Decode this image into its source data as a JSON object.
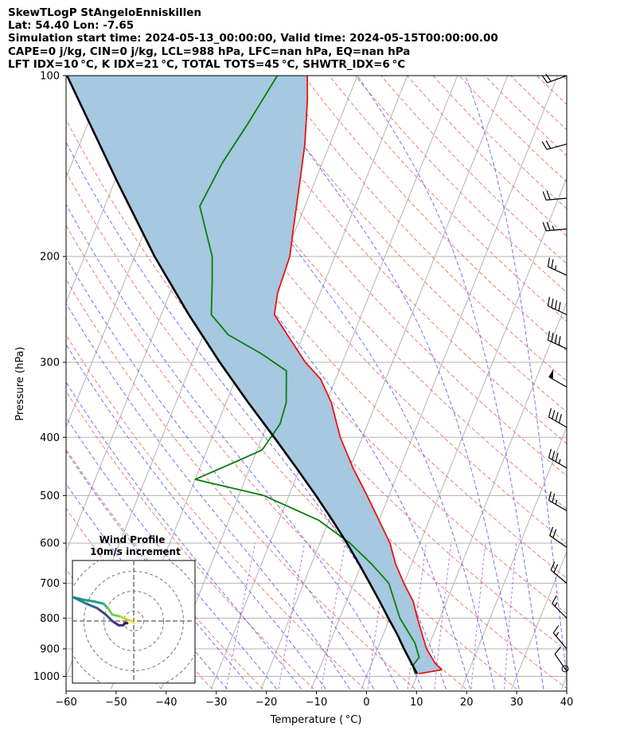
{
  "header": {
    "line1": "SkewTLogP StAngeloEnniskillen",
    "line2": "Lat: 54.40   Lon: -7.65",
    "line3": "Simulation start time: 2024-05-13_00:00:00, Valid time: 2024-05-15T00:00:00.00",
    "line4": "CAPE=0 j/kg, CIN=0 j/kg, LCL=988 hPa, LFC=nan hPa, EQ=nan hPa",
    "line5": "LFT IDX=10 °C, K IDX=21 °C, TOTAL TOTS=45 °C, SHWTR_IDX=6 °C"
  },
  "colors": {
    "temperature": "#ee1111",
    "dewpoint": "#0a7d0a",
    "parcel": "#000000",
    "shading": "#a6c8e0",
    "dry_adiabat": "#f26b6b",
    "moist_adiabat": "#5a5af2",
    "mixing_ratio": "#9a3fc4",
    "isotherm": "#b3b3b3"
  },
  "chart_data": {
    "type": "skewt",
    "xlabel": "Temperature ( °C)",
    "ylabel": "Pressure (hPa)",
    "xlim": [
      -60,
      40
    ],
    "ylim": [
      1050,
      100
    ],
    "xticks": [
      -60,
      -50,
      -40,
      -30,
      -20,
      -10,
      0,
      10,
      20,
      30,
      40
    ],
    "xtick_labels": [
      "−60",
      "−50",
      "−40",
      "−30",
      "−20",
      "−10",
      "0",
      "10",
      "20",
      "30",
      "40"
    ],
    "yticks": [
      1000,
      900,
      800,
      700,
      600,
      500,
      400,
      300,
      200,
      100
    ],
    "ytick_labels": [
      "1000",
      "900",
      "800",
      "700",
      "600",
      "500",
      "400",
      "300",
      "200",
      "100"
    ],
    "temperature": [
      {
        "p": 990,
        "t": 10.2
      },
      {
        "p": 975,
        "t": 14.5
      },
      {
        "p": 950,
        "t": 12.6
      },
      {
        "p": 900,
        "t": 9.8
      },
      {
        "p": 850,
        "t": 7.7
      },
      {
        "p": 800,
        "t": 5.5
      },
      {
        "p": 750,
        "t": 3.3
      },
      {
        "p": 700,
        "t": 0.0
      },
      {
        "p": 650,
        "t": -3.2
      },
      {
        "p": 600,
        "t": -6.0
      },
      {
        "p": 550,
        "t": -10.0
      },
      {
        "p": 500,
        "t": -14.4
      },
      {
        "p": 450,
        "t": -19.4
      },
      {
        "p": 400,
        "t": -24.4
      },
      {
        "p": 350,
        "t": -29.0
      },
      {
        "p": 320,
        "t": -33.0
      },
      {
        "p": 300,
        "t": -37.4
      },
      {
        "p": 270,
        "t": -43.2
      },
      {
        "p": 250,
        "t": -47.4
      },
      {
        "p": 230,
        "t": -48.5
      },
      {
        "p": 200,
        "t": -49.0
      },
      {
        "p": 180,
        "t": -50.5
      },
      {
        "p": 150,
        "t": -53.0
      },
      {
        "p": 130,
        "t": -55.0
      },
      {
        "p": 110,
        "t": -58.0
      },
      {
        "p": 100,
        "t": -60.0
      }
    ],
    "dewpoint": [
      {
        "p": 990,
        "t": 9.5
      },
      {
        "p": 960,
        "t": 8.4
      },
      {
        "p": 930,
        "t": 9.0
      },
      {
        "p": 880,
        "t": 7.0
      },
      {
        "p": 800,
        "t": 2.0
      },
      {
        "p": 700,
        "t": -3.0
      },
      {
        "p": 650,
        "t": -8.0
      },
      {
        "p": 600,
        "t": -14.0
      },
      {
        "p": 550,
        "t": -22.0
      },
      {
        "p": 500,
        "t": -35.0
      },
      {
        "p": 470,
        "t": -50.0
      },
      {
        "p": 440,
        "t": -43.5
      },
      {
        "p": 420,
        "t": -39.0
      },
      {
        "p": 380,
        "t": -37.5
      },
      {
        "p": 350,
        "t": -38.0
      },
      {
        "p": 310,
        "t": -40.5
      },
      {
        "p": 290,
        "t": -47.0
      },
      {
        "p": 270,
        "t": -55.0
      },
      {
        "p": 250,
        "t": -60.0
      },
      {
        "p": 220,
        "t": -62.5
      },
      {
        "p": 200,
        "t": -64.5
      },
      {
        "p": 165,
        "t": -71.0
      },
      {
        "p": 140,
        "t": -70.0
      },
      {
        "p": 120,
        "t": -68.0
      },
      {
        "p": 100,
        "t": -66.0
      }
    ],
    "parcel_profile": [
      {
        "p": 990,
        "t": 9.9
      },
      {
        "p": 950,
        "t": 7.9
      },
      {
        "p": 900,
        "t": 5.3
      },
      {
        "p": 850,
        "t": 2.7
      },
      {
        "p": 800,
        "t": -0.3
      },
      {
        "p": 750,
        "t": -3.4
      },
      {
        "p": 700,
        "t": -6.8
      },
      {
        "p": 650,
        "t": -10.5
      },
      {
        "p": 600,
        "t": -14.6
      },
      {
        "p": 550,
        "t": -19.3
      },
      {
        "p": 500,
        "t": -24.6
      },
      {
        "p": 450,
        "t": -30.7
      },
      {
        "p": 400,
        "t": -37.6
      },
      {
        "p": 350,
        "t": -45.6
      },
      {
        "p": 300,
        "t": -54.5
      },
      {
        "p": 250,
        "t": -64.5
      },
      {
        "p": 200,
        "t": -76.0
      },
      {
        "p": 150,
        "t": -89.5
      },
      {
        "p": 100,
        "t": -108.0
      }
    ],
    "wind_barbs": [
      {
        "p": 100,
        "speed_kt": 20,
        "dir_deg": 250
      },
      {
        "p": 130,
        "speed_kt": 20,
        "dir_deg": 255
      },
      {
        "p": 160,
        "speed_kt": 20,
        "dir_deg": 265
      },
      {
        "p": 180,
        "speed_kt": 25,
        "dir_deg": 265
      },
      {
        "p": 215,
        "speed_kt": 25,
        "dir_deg": 295
      },
      {
        "p": 250,
        "speed_kt": 40,
        "dir_deg": 295
      },
      {
        "p": 285,
        "speed_kt": 40,
        "dir_deg": 295
      },
      {
        "p": 330,
        "speed_kt": 50,
        "dir_deg": 300
      },
      {
        "p": 385,
        "speed_kt": 40,
        "dir_deg": 300
      },
      {
        "p": 450,
        "speed_kt": 35,
        "dir_deg": 300
      },
      {
        "p": 530,
        "speed_kt": 25,
        "dir_deg": 300
      },
      {
        "p": 610,
        "speed_kt": 20,
        "dir_deg": 305
      },
      {
        "p": 700,
        "speed_kt": 20,
        "dir_deg": 310
      },
      {
        "p": 800,
        "speed_kt": 15,
        "dir_deg": 315
      },
      {
        "p": 900,
        "speed_kt": 15,
        "dir_deg": 320
      },
      {
        "p": 980,
        "speed_kt": 10,
        "dir_deg": 325
      }
    ],
    "hodograph": {
      "title": "Wind Profile",
      "subtitle": "10m/s increment",
      "ring_increment_ms": 10,
      "rings": 4,
      "points": [
        {
          "u": -3,
          "v": -1
        },
        {
          "u": -4,
          "v": -1
        },
        {
          "u": -5,
          "v": -2
        },
        {
          "u": -7,
          "v": -2
        },
        {
          "u": -10,
          "v": 0
        },
        {
          "u": -13,
          "v": 3
        },
        {
          "u": -17,
          "v": 6
        },
        {
          "u": -22,
          "v": 8
        },
        {
          "u": -28,
          "v": 11
        },
        {
          "u": -24,
          "v": 10
        },
        {
          "u": -18,
          "v": 9
        },
        {
          "u": -14,
          "v": 8
        },
        {
          "u": -12,
          "v": 6
        },
        {
          "u": -10,
          "v": 3
        },
        {
          "u": -6,
          "v": 2
        },
        {
          "u": -4,
          "v": 1
        },
        {
          "u": -1,
          "v": 0
        },
        {
          "u": 0,
          "v": -1
        }
      ]
    }
  }
}
